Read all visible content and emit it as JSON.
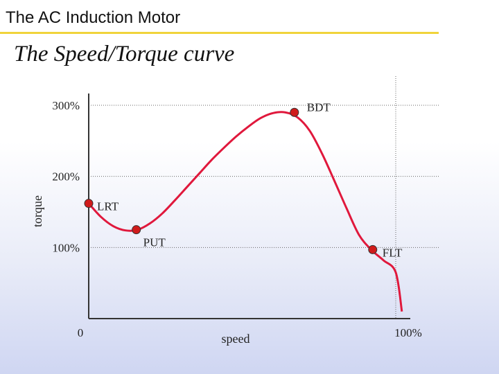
{
  "header": {
    "title": "The AC Induction Motor",
    "subtitle": "The Speed/Torque curve"
  },
  "colors": {
    "curve": "#e0183c",
    "points": "#d01b1b",
    "title_rule": "#f0d33a",
    "axis": "#333333",
    "gridline": "#666666"
  },
  "chart_data": {
    "type": "line",
    "xlabel": "speed",
    "ylabel": "torque",
    "xlim": [
      0,
      100
    ],
    "ylim": [
      0,
      300
    ],
    "x_tick_labels": [
      {
        "value": 0,
        "label": "0"
      },
      {
        "value": 100,
        "label": "100%"
      }
    ],
    "y_tick_labels": [
      {
        "value": 100,
        "label": "100%"
      },
      {
        "value": 200,
        "label": "200%"
      },
      {
        "value": 300,
        "label": "300%"
      }
    ],
    "gridlines": "dotted horizontal at labeled y ticks; dotted vertical at x=100",
    "series": [
      {
        "x": [
          0,
          4,
          8,
          12,
          16,
          20,
          24,
          28,
          32,
          36,
          40,
          44,
          48,
          52,
          56,
          60,
          64,
          68,
          72,
          76,
          80,
          84,
          88,
          92,
          96,
          100,
          102
        ],
        "y": [
          162,
          143,
          130,
          124,
          125,
          134,
          148,
          166,
          185,
          204,
          223,
          240,
          256,
          270,
          282,
          289,
          290,
          283,
          264,
          232,
          194,
          155,
          118,
          97,
          82,
          65,
          10
        ]
      }
    ],
    "points": [
      {
        "label": "LRT",
        "x": 0,
        "y": 162
      },
      {
        "label": "PUT",
        "x": 15.5,
        "y": 125
      },
      {
        "label": "BDT",
        "x": 67,
        "y": 290
      },
      {
        "label": "FLT",
        "x": 92.5,
        "y": 97
      }
    ]
  }
}
